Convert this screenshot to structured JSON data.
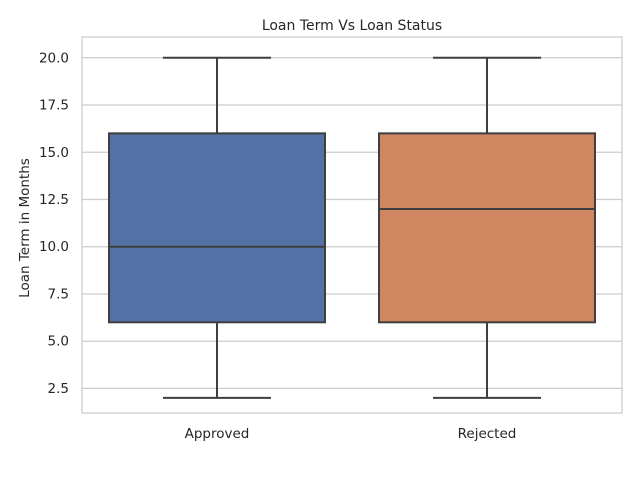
{
  "chart_data": {
    "type": "box",
    "title": "Loan Term Vs Loan Status",
    "xlabel": "",
    "ylabel": "Loan Term in Months",
    "ylim": [
      1.2,
      21.1
    ],
    "yticks": [
      "2.5",
      "5.0",
      "7.5",
      "10.0",
      "12.5",
      "15.0",
      "17.5",
      "20.0"
    ],
    "grid": true,
    "categories": [
      "Approved",
      "Rejected"
    ],
    "boxes": [
      {
        "category": "Approved",
        "whisker_low": 2,
        "q1": 6,
        "median": 10,
        "q3": 16,
        "whisker_high": 20,
        "color": "#5471a5"
      },
      {
        "category": "Rejected",
        "whisker_low": 2,
        "q1": 6,
        "median": 12,
        "q3": 16,
        "whisker_high": 20,
        "color": "#cf8762"
      }
    ]
  }
}
